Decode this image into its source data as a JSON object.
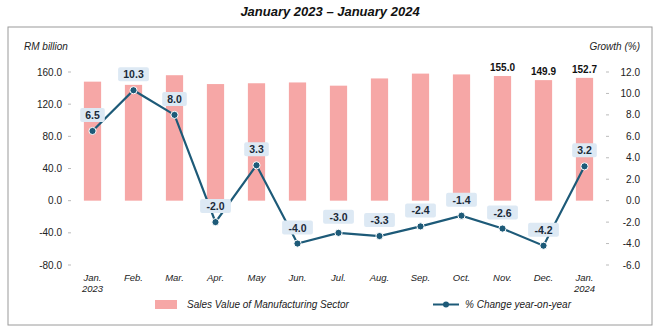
{
  "chart_data": {
    "type": "bar",
    "title": "January 2023 – January 2024",
    "categories": [
      "Jan.\n2023",
      "Feb.",
      "Mar.",
      "Apr.",
      "May",
      "Jun.",
      "Jul.",
      "Aug.",
      "Sep.",
      "Oct.",
      "Nov.",
      "Dec.",
      "Jan.\n2024"
    ],
    "y_label": "RM billion",
    "y2_label": "Growth (%)",
    "ylim": [
      -80,
      160
    ],
    "yticks": [
      {
        "value": -80,
        "label": "-80.0"
      },
      {
        "value": -40,
        "label": "-40.0"
      },
      {
        "value": 0,
        "label": "0.0"
      },
      {
        "value": 40,
        "label": "40.0"
      },
      {
        "value": 80,
        "label": "80.0"
      },
      {
        "value": 120,
        "label": "120.0"
      },
      {
        "value": 160,
        "label": "160.0"
      }
    ],
    "y2lim": [
      -6,
      12
    ],
    "y2ticks": [
      {
        "value": -6,
        "label": "-6.0"
      },
      {
        "value": -4,
        "label": "-4.0"
      },
      {
        "value": -2,
        "label": "-2.0"
      },
      {
        "value": 0,
        "label": "0.0"
      },
      {
        "value": 2,
        "label": "2.0"
      },
      {
        "value": 4,
        "label": "4.0"
      },
      {
        "value": 6,
        "label": "6.0"
      },
      {
        "value": 8,
        "label": "8.0"
      },
      {
        "value": 10,
        "label": "10.0"
      },
      {
        "value": 12,
        "label": "12.0"
      }
    ],
    "series": [
      {
        "name": "Sales Value of Manufacturing Sector",
        "type": "bar",
        "color": "#f6a7a6",
        "values": [
          148,
          144,
          156,
          145,
          146,
          147,
          143,
          152,
          158,
          157,
          155.0,
          149.9,
          152.7
        ],
        "value_labels": [
          null,
          null,
          null,
          null,
          null,
          null,
          null,
          null,
          null,
          null,
          "155.0",
          "149.9",
          "152.7"
        ]
      },
      {
        "name": "% Change year-on-year",
        "type": "line",
        "axis": "y2",
        "color": "#1d5a78",
        "marker": "circle",
        "values": [
          6.5,
          10.3,
          8.0,
          -2.0,
          3.3,
          -4.0,
          -3.0,
          -3.3,
          -2.4,
          -1.4,
          -2.6,
          -4.2,
          3.2
        ],
        "value_labels": [
          "6.5",
          "10.3",
          "8.0",
          "-2.0",
          "3.3",
          "-4.0",
          "-3.0",
          "-3.3",
          "-2.4",
          "-1.4",
          "-2.6",
          "-4.2",
          "3.2"
        ]
      }
    ],
    "data_labels": true,
    "grid": false,
    "legend": "bottom"
  }
}
